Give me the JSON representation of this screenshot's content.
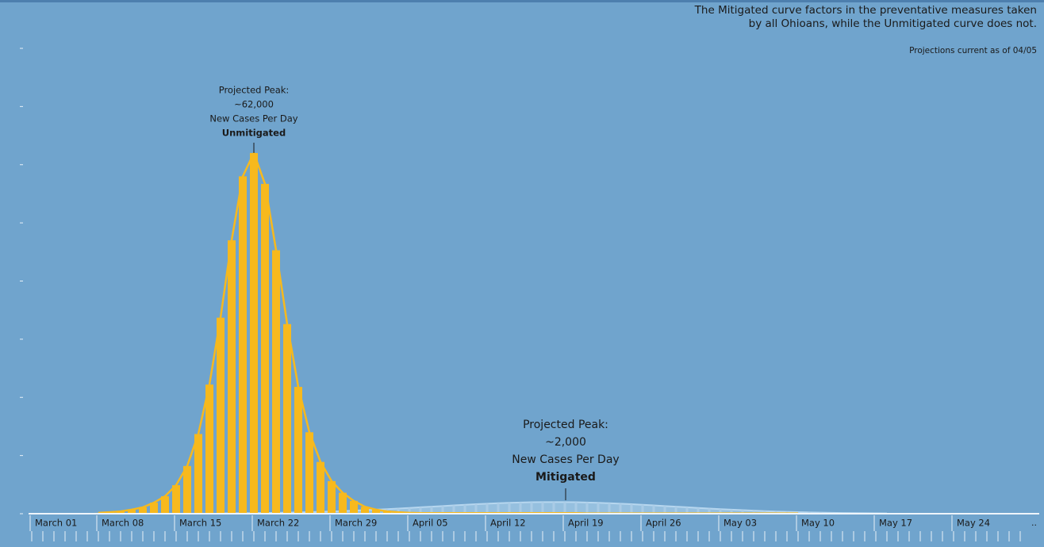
{
  "chart_data": {
    "type": "bar_line",
    "note_lines": [
      "The Mitigated curve factors in the preventative measures taken",
      "by all Ohioans, while the Unmitigated curve does not."
    ],
    "subnote": "Projections current as of 04/05",
    "annotations": [
      {
        "lines": [
          "Projected Peak:",
          "~62,000",
          "New Cases Per Day"
        ],
        "emphasis": "Unmitigated"
      },
      {
        "lines": [
          "Projected Peak:",
          "~2,000",
          "New Cases Per Day"
        ],
        "emphasis": "Mitigated"
      }
    ],
    "categories": [
      "March 01",
      null,
      null,
      null,
      null,
      null,
      null,
      "March 08",
      null,
      null,
      null,
      null,
      null,
      null,
      "March 15",
      null,
      null,
      null,
      null,
      null,
      null,
      "March 22",
      null,
      null,
      null,
      null,
      null,
      null,
      "March 29",
      null,
      null,
      null,
      null,
      null,
      null,
      "April 05",
      null,
      null,
      null,
      null,
      null,
      null,
      "April 12",
      null,
      null,
      null,
      null,
      null,
      null,
      "April 19",
      null,
      null,
      null,
      null,
      null,
      null,
      "April 26",
      null,
      null,
      null,
      null,
      null,
      null,
      "May 03",
      null,
      null,
      null,
      null,
      null,
      null,
      "May 10",
      null,
      null,
      null,
      null,
      null,
      null,
      "May 17",
      null,
      null,
      null,
      null,
      null,
      null,
      "May 24",
      null,
      null,
      null,
      null,
      null,
      null
    ],
    "more_label": "..",
    "ylim": [
      0,
      80000
    ],
    "yticks": [
      0,
      10000,
      20000,
      30000,
      40000,
      50000,
      60000,
      70000,
      80000
    ],
    "series": [
      {
        "name": "Unmitigated",
        "color": "#f7b91d",
        "values": [
          null,
          null,
          null,
          null,
          null,
          null,
          null,
          150,
          250,
          400,
          700,
          1100,
          1900,
          3000,
          4900,
          8200,
          13700,
          22200,
          33700,
          47000,
          58000,
          62000,
          56700,
          45300,
          32600,
          21800,
          14000,
          8900,
          5600,
          3600,
          2200,
          1200,
          700,
          400,
          250,
          150,
          100,
          100,
          100,
          100,
          100,
          100,
          100,
          100,
          100,
          100,
          100,
          100,
          100,
          100,
          100,
          50,
          50,
          50,
          50,
          50,
          50,
          50,
          50,
          50,
          50,
          50,
          50,
          50,
          50,
          50,
          50,
          50,
          50,
          50,
          50,
          null,
          null,
          null,
          null,
          null,
          null,
          null,
          null,
          null,
          null,
          null,
          null,
          null,
          null,
          null,
          null,
          null,
          null,
          null,
          null
        ]
      },
      {
        "name": "Mitigated",
        "color": "#b7d7ef",
        "values": [
          null,
          null,
          null,
          null,
          null,
          null,
          null,
          null,
          null,
          null,
          null,
          null,
          null,
          null,
          null,
          null,
          null,
          null,
          50,
          60,
          80,
          100,
          120,
          150,
          190,
          220,
          270,
          320,
          380,
          450,
          530,
          610,
          700,
          790,
          890,
          990,
          1100,
          1210,
          1320,
          1430,
          1540,
          1630,
          1720,
          1800,
          1870,
          1930,
          1970,
          1990,
          2000,
          1990,
          1970,
          1930,
          1870,
          1800,
          1720,
          1630,
          1540,
          1430,
          1320,
          1210,
          1100,
          990,
          890,
          790,
          700,
          610,
          530,
          450,
          380,
          320,
          270,
          220,
          190,
          150,
          120,
          100,
          80,
          60,
          50,
          null,
          null,
          null,
          null,
          null,
          null,
          null,
          null,
          null,
          null,
          null,
          null
        ]
      }
    ]
  }
}
